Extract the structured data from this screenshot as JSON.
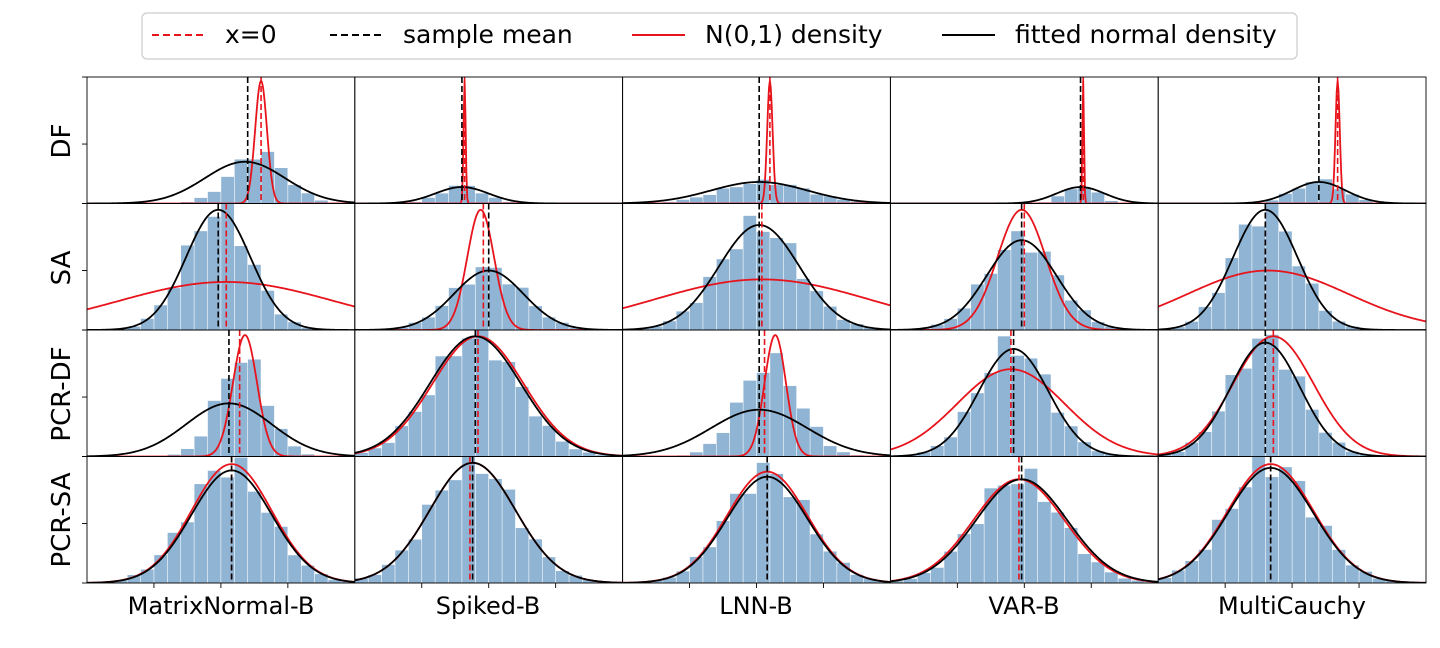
{
  "legend": {
    "entries": [
      {
        "label": "x=0",
        "style": "dashed",
        "color": "#e8141c"
      },
      {
        "label": "sample mean",
        "style": "dashed",
        "color": "#000000"
      },
      {
        "label": "N(0,1) density",
        "style": "solid",
        "color": "#e8141c"
      },
      {
        "label": "fitted normal density",
        "style": "solid",
        "color": "#000000"
      }
    ]
  },
  "colors": {
    "hist": "#8fb4d4",
    "red": "#e8141c",
    "black": "#000000",
    "frame": "#000000"
  },
  "chart_data": {
    "type": "histogram-grid",
    "rows": [
      "DF",
      "SA",
      "PCR-DF",
      "PCR-SA"
    ],
    "columns": [
      "MatrixNormal-B",
      "Spiked-B",
      "LNN-B",
      "VAR-B",
      "MultiCauchy"
    ],
    "x_range": [
      0,
      1
    ],
    "y_range": [
      0,
      1
    ],
    "panels": [
      [
        {
          "zero": 0.65,
          "mean": 0.6,
          "n_mu": 0.65,
          "n_sd": 0.022,
          "n_peak": 0.97,
          "f_mu": 0.59,
          "f_sd": 0.15,
          "f_peak": 0.33,
          "h_mu": 0.64,
          "h_sd": 0.1,
          "h_peak": 0.4
        },
        {
          "zero": 0.41,
          "mean": 0.4,
          "n_mu": 0.41,
          "n_sd": 0.004,
          "n_peak": 0.97,
          "f_mu": 0.4,
          "f_sd": 0.1,
          "f_peak": 0.13,
          "h_mu": 0.4,
          "h_sd": 0.08,
          "h_peak": 0.14
        },
        {
          "zero": 0.55,
          "mean": 0.51,
          "n_mu": 0.55,
          "n_sd": 0.01,
          "n_peak": 0.97,
          "f_mu": 0.51,
          "f_sd": 0.18,
          "f_peak": 0.17,
          "h_mu": 0.53,
          "h_sd": 0.16,
          "h_peak": 0.17
        },
        {
          "zero": 0.72,
          "mean": 0.71,
          "n_mu": 0.72,
          "n_sd": 0.003,
          "n_peak": 0.97,
          "f_mu": 0.71,
          "f_sd": 0.09,
          "f_peak": 0.13,
          "h_mu": 0.71,
          "h_sd": 0.06,
          "h_peak": 0.14
        },
        {
          "zero": 0.67,
          "mean": 0.6,
          "n_mu": 0.67,
          "n_sd": 0.008,
          "n_peak": 0.97,
          "f_mu": 0.6,
          "f_sd": 0.1,
          "f_peak": 0.17,
          "h_mu": 0.6,
          "h_sd": 0.09,
          "h_peak": 0.18
        }
      ],
      [
        {
          "zero": 0.52,
          "mean": 0.49,
          "n_mu": 0.52,
          "n_sd": 0.4,
          "n_peak": 0.38,
          "f_mu": 0.49,
          "f_sd": 0.12,
          "f_peak": 0.95,
          "h_mu": 0.49,
          "h_sd": 0.12,
          "h_peak": 0.95
        },
        {
          "zero": 0.48,
          "mean": 0.5,
          "n_mu": 0.47,
          "n_sd": 0.05,
          "n_peak": 0.95,
          "f_mu": 0.5,
          "f_sd": 0.13,
          "f_peak": 0.47,
          "h_mu": 0.5,
          "h_sd": 0.13,
          "h_peak": 0.48
        },
        {
          "zero": 0.52,
          "mean": 0.51,
          "n_mu": 0.52,
          "n_sd": 0.4,
          "n_peak": 0.4,
          "f_mu": 0.51,
          "f_sd": 0.15,
          "f_peak": 0.83,
          "h_mu": 0.51,
          "h_sd": 0.15,
          "h_peak": 0.83
        },
        {
          "zero": 0.5,
          "mean": 0.49,
          "n_mu": 0.49,
          "n_sd": 0.09,
          "n_peak": 0.95,
          "f_mu": 0.49,
          "f_sd": 0.13,
          "f_peak": 0.71,
          "h_mu": 0.49,
          "h_sd": 0.13,
          "h_peak": 0.72
        },
        {
          "zero": 0.4,
          "mean": 0.4,
          "n_mu": 0.41,
          "n_sd": 0.3,
          "n_peak": 0.47,
          "f_mu": 0.4,
          "f_sd": 0.12,
          "f_peak": 0.95,
          "h_mu": 0.4,
          "h_sd": 0.12,
          "h_peak": 0.95
        }
      ],
      [
        {
          "zero": 0.57,
          "mean": 0.53,
          "n_mu": 0.59,
          "n_sd": 0.045,
          "n_peak": 0.96,
          "f_mu": 0.53,
          "f_sd": 0.16,
          "f_peak": 0.42,
          "h_mu": 0.58,
          "h_sd": 0.09,
          "h_peak": 0.78
        },
        {
          "zero": 0.46,
          "mean": 0.45,
          "n_mu": 0.46,
          "n_sd": 0.17,
          "n_peak": 0.95,
          "f_mu": 0.45,
          "f_sd": 0.17,
          "f_peak": 0.95,
          "h_mu": 0.45,
          "h_sd": 0.16,
          "h_peak": 0.96
        },
        {
          "zero": 0.53,
          "mean": 0.51,
          "n_mu": 0.57,
          "n_sd": 0.04,
          "n_peak": 0.96,
          "f_mu": 0.51,
          "f_sd": 0.18,
          "f_peak": 0.37,
          "h_mu": 0.55,
          "h_sd": 0.11,
          "h_peak": 0.75
        },
        {
          "zero": 0.45,
          "mean": 0.46,
          "n_mu": 0.45,
          "n_sd": 0.2,
          "n_peak": 0.69,
          "f_mu": 0.46,
          "f_sd": 0.13,
          "f_peak": 0.85,
          "h_mu": 0.46,
          "h_sd": 0.13,
          "h_peak": 0.88
        },
        {
          "zero": 0.43,
          "mean": 0.4,
          "n_mu": 0.43,
          "n_sd": 0.15,
          "n_peak": 0.95,
          "f_mu": 0.4,
          "f_sd": 0.13,
          "f_peak": 0.9,
          "h_mu": 0.4,
          "h_sd": 0.13,
          "h_peak": 0.92
        }
      ],
      [
        {
          "zero": 0.54,
          "mean": 0.54,
          "n_mu": 0.54,
          "n_sd": 0.15,
          "n_peak": 0.94,
          "f_mu": 0.54,
          "f_sd": 0.15,
          "f_peak": 0.89,
          "h_mu": 0.53,
          "h_sd": 0.15,
          "h_peak": 0.93
        },
        {
          "zero": 0.43,
          "mean": 0.44,
          "n_mu": 0.44,
          "n_sd": 0.16,
          "n_peak": 0.95,
          "f_mu": 0.44,
          "f_sd": 0.16,
          "f_peak": 0.95,
          "h_mu": 0.44,
          "h_sd": 0.16,
          "h_peak": 0.96
        },
        {
          "zero": 0.54,
          "mean": 0.54,
          "n_mu": 0.54,
          "n_sd": 0.15,
          "n_peak": 0.88,
          "f_mu": 0.54,
          "f_sd": 0.15,
          "f_peak": 0.84,
          "h_mu": 0.54,
          "h_sd": 0.15,
          "h_peak": 0.88
        },
        {
          "zero": 0.48,
          "mean": 0.49,
          "n_mu": 0.48,
          "n_sd": 0.17,
          "n_peak": 0.82,
          "f_mu": 0.49,
          "f_sd": 0.17,
          "f_peak": 0.82,
          "h_mu": 0.48,
          "h_sd": 0.16,
          "h_peak": 0.84
        },
        {
          "zero": 0.42,
          "mean": 0.42,
          "n_mu": 0.42,
          "n_sd": 0.16,
          "n_peak": 0.94,
          "f_mu": 0.42,
          "f_sd": 0.16,
          "f_peak": 0.91,
          "h_mu": 0.42,
          "h_sd": 0.16,
          "h_peak": 0.94
        }
      ]
    ]
  }
}
